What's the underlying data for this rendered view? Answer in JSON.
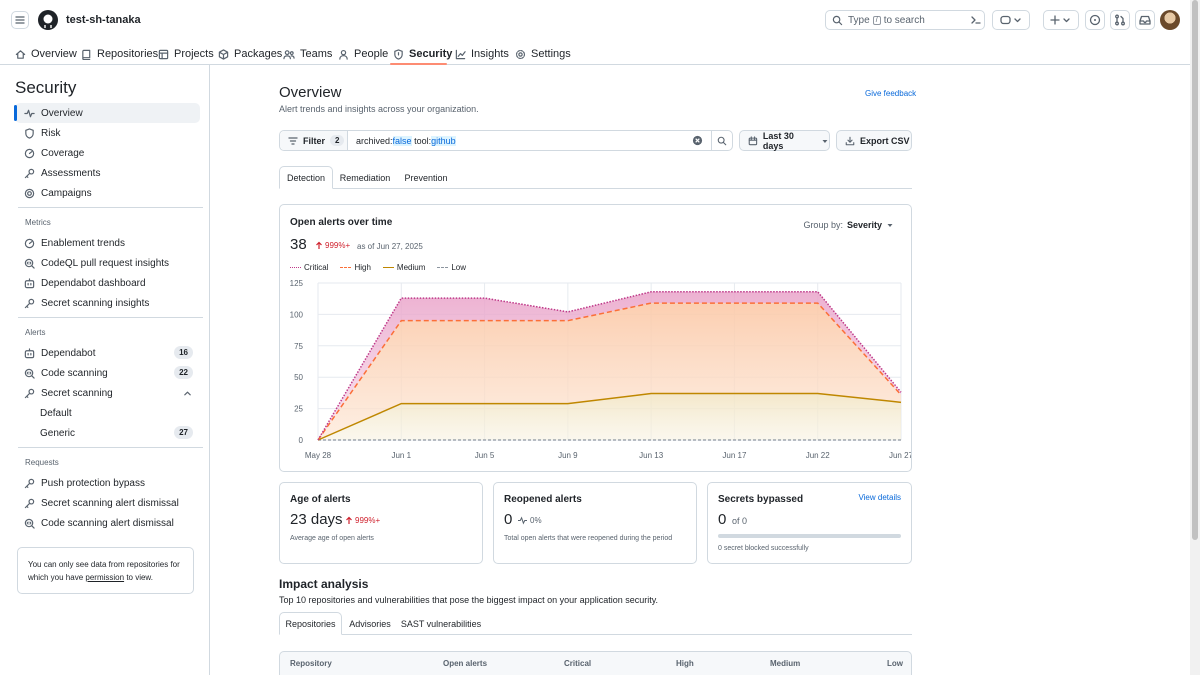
{
  "header": {
    "org_name": "test-sh-tanaka",
    "search_prefix": "Type",
    "search_key": "/",
    "search_suffix": "to search"
  },
  "org_nav": [
    {
      "label": "Overview",
      "icon": "home-icon"
    },
    {
      "label": "Repositories",
      "icon": "repo-icon"
    },
    {
      "label": "Projects",
      "icon": "table-icon"
    },
    {
      "label": "Packages",
      "icon": "package-icon"
    },
    {
      "label": "Teams",
      "icon": "people-icon"
    },
    {
      "label": "People",
      "icon": "person-icon"
    },
    {
      "label": "Security",
      "icon": "shield-icon"
    },
    {
      "label": "Insights",
      "icon": "graph-icon"
    },
    {
      "label": "Settings",
      "icon": "gear-icon"
    }
  ],
  "sidebar": {
    "title": "Security",
    "main_items": [
      "Overview",
      "Risk",
      "Coverage",
      "Assessments",
      "Campaigns"
    ],
    "metrics_label": "Metrics",
    "metrics_items": [
      "Enablement trends",
      "CodeQL pull request insights",
      "Dependabot dashboard",
      "Secret scanning insights"
    ],
    "alerts_label": "Alerts",
    "alerts_items": [
      {
        "label": "Dependabot",
        "count": "16"
      },
      {
        "label": "Code scanning",
        "count": "22"
      },
      {
        "label": "Secret scanning",
        "count": ""
      },
      {
        "label": "Default",
        "count": ""
      },
      {
        "label": "Generic",
        "count": "27"
      }
    ],
    "requests_label": "Requests",
    "requests_items": [
      "Push protection bypass",
      "Secret scanning alert dismissal",
      "Code scanning alert dismissal"
    ],
    "notice_before": "You can only see data from repositories for which you have",
    "notice_link": "permission",
    "notice_after": "to view."
  },
  "main": {
    "title": "Overview",
    "subtitle": "Alert trends and insights across your organization.",
    "feedback": "Give feedback",
    "filter_label": "Filter",
    "filter_count": "2",
    "query": [
      {
        "k": "archived:",
        "v": "false"
      },
      {
        "k": "tool:",
        "v": "github"
      }
    ],
    "date_range": "Last 30 days",
    "export_label": "Export CSV",
    "tabs": [
      "Detection",
      "Remediation",
      "Prevention"
    ]
  },
  "chart_card": {
    "title": "Open alerts over time",
    "total": "38",
    "delta": "999%+",
    "as_of": "as of Jun 27, 2025",
    "group_by_label": "Group by:",
    "group_by_value": "Severity"
  },
  "chart_data": {
    "type": "area",
    "x": [
      "May 28",
      "Jun 1",
      "Jun 5",
      "Jun 9",
      "Jun 13",
      "Jun 17",
      "Jun 22",
      "Jun 27"
    ],
    "xticks": [
      "May 28",
      "Jun 1",
      "Jun 5",
      "Jun 9",
      "Jun 13",
      "Jun 17",
      "Jun 22",
      "Jun 27"
    ],
    "yticks": [
      "0",
      "25",
      "50",
      "75",
      "100",
      "125"
    ],
    "ylim": [
      0,
      125
    ],
    "stacked": true,
    "series": [
      {
        "name": "Low",
        "color": "#8c959f",
        "values": [
          0,
          0,
          0,
          0,
          0,
          0,
          0,
          0
        ]
      },
      {
        "name": "Medium",
        "color": "#bf8700",
        "values": [
          0,
          29,
          29,
          29,
          37,
          37,
          37,
          30
        ]
      },
      {
        "name": "High",
        "color": "#fb6f38",
        "values": [
          0,
          66,
          66,
          66,
          72,
          72,
          72,
          6
        ]
      },
      {
        "name": "Critical",
        "color": "#bf3989",
        "values": [
          0,
          18,
          18,
          7,
          9,
          9,
          9,
          2
        ]
      }
    ],
    "legend_order": [
      "Critical",
      "High",
      "Medium",
      "Low"
    ],
    "grid": true
  },
  "stats": {
    "age": {
      "title": "Age of alerts",
      "value": "23 days",
      "delta": "999%+",
      "note": "Average age of open alerts"
    },
    "reopened": {
      "title": "Reopened alerts",
      "value": "0",
      "delta": "0%",
      "note": "Total open alerts that were reopened during the period"
    },
    "bypassed": {
      "title": "Secrets bypassed",
      "value": "0",
      "of": "of 0",
      "link": "View details",
      "note": "0 secret blocked successfully",
      "progress": 0
    }
  },
  "impact": {
    "title": "Impact analysis",
    "subtitle": "Top 10 repositories and vulnerabilities that pose the biggest impact on your application security.",
    "tabs": [
      "Repositories",
      "Advisories",
      "SAST vulnerabilities"
    ],
    "columns": [
      "Repository",
      "Open alerts",
      "Critical",
      "High",
      "Medium",
      "Low"
    ]
  }
}
